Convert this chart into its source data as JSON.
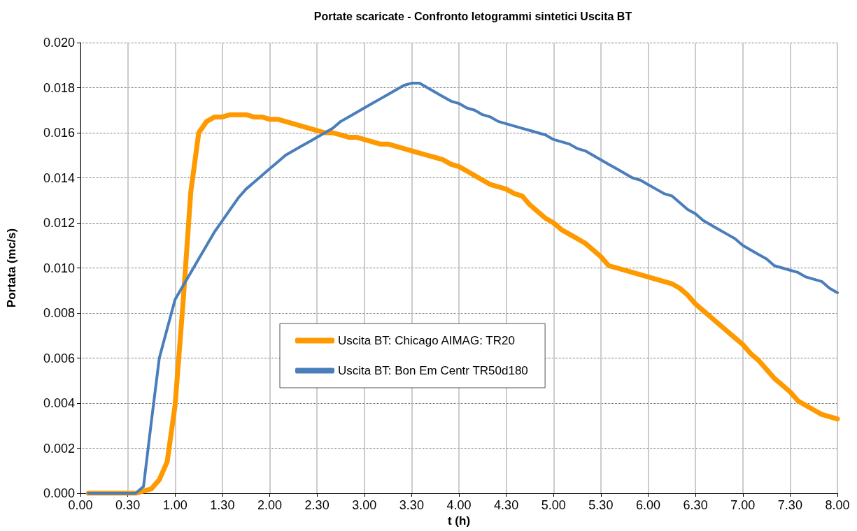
{
  "chart_data": {
    "type": "line",
    "title": "Portate scaricate - Confronto Ietogrammi sintetici Uscita BT",
    "xlabel": "t (h)",
    "ylabel": "Portata (mc/s)",
    "categories": [
      "0.00",
      null,
      null,
      null,
      null,
      null,
      "0.30",
      null,
      null,
      null,
      null,
      null,
      "1.00",
      null,
      null,
      null,
      null,
      null,
      "1.30",
      null,
      null,
      null,
      null,
      null,
      "2.00",
      null,
      null,
      null,
      null,
      null,
      "2.30",
      null,
      null,
      null,
      null,
      null,
      "3.00",
      null,
      null,
      null,
      null,
      null,
      "3.30",
      null,
      null,
      null,
      null,
      null,
      "4.00",
      null,
      null,
      null,
      null,
      null,
      "4.30",
      null,
      null,
      null,
      null,
      null,
      "5.00",
      null,
      null,
      null,
      null,
      null,
      "5.30",
      null,
      null,
      null,
      null,
      null,
      "6.00",
      null,
      null,
      null,
      null,
      null,
      "6.30",
      null,
      null,
      null,
      null,
      null,
      "7.00",
      null,
      null,
      null,
      null,
      null,
      "7.30",
      null,
      null,
      null,
      null,
      null,
      "8.00"
    ],
    "series": [
      {
        "name": "Uscita BT: Chicago AIMAG: TR20",
        "color": "#ff9900",
        "values": [
          null,
          0,
          0,
          0,
          0,
          0,
          0,
          0,
          0.0001,
          0.0002,
          0.0006,
          0.0014,
          0.0039,
          0.0084,
          0.0134,
          0.016,
          0.0165,
          0.0167,
          0.0167,
          0.0168,
          0.0168,
          0.0168,
          0.0167,
          0.0167,
          0.0166,
          0.0166,
          0.0165,
          0.0164,
          0.0163,
          0.0162,
          0.0161,
          0.016,
          0.016,
          0.0159,
          0.0158,
          0.0158,
          0.0157,
          0.0156,
          0.0155,
          0.0155,
          0.0154,
          0.0153,
          0.0152,
          0.0151,
          0.015,
          0.0149,
          0.0148,
          0.0146,
          0.0145,
          0.0143,
          0.0141,
          0.0139,
          0.0137,
          0.0136,
          0.0135,
          0.0133,
          0.0132,
          0.0128,
          0.0125,
          0.0122,
          0.012,
          0.0117,
          0.0115,
          0.0113,
          0.0111,
          0.0108,
          0.0105,
          0.0101,
          0.01,
          0.0099,
          0.0098,
          0.0097,
          0.0096,
          0.0095,
          0.0094,
          0.0093,
          0.0091,
          0.0088,
          0.0084,
          0.0081,
          0.0078,
          0.0075,
          0.0072,
          0.0069,
          0.0066,
          0.0062,
          0.0059,
          0.0055,
          0.0051,
          0.0048,
          0.0045,
          0.0041,
          0.0039,
          0.0037,
          0.0035,
          0.0034,
          0.0033
        ]
      },
      {
        "name": "Uscita BT: Bon Em Centr TR50d180",
        "color": "#4a7ebb",
        "values": [
          null,
          0,
          0,
          0,
          0,
          0,
          0,
          0,
          0.0003,
          0.0032,
          0.006,
          0.0073,
          0.0086,
          0.0092,
          0.0098,
          0.0104,
          0.011,
          0.0116,
          0.0121,
          0.0126,
          0.0131,
          0.0135,
          0.0138,
          0.0141,
          0.0144,
          0.0147,
          0.015,
          0.0152,
          0.0154,
          0.0156,
          0.0158,
          0.016,
          0.0162,
          0.0165,
          0.0167,
          0.0169,
          0.0171,
          0.0173,
          0.0175,
          0.0177,
          0.0179,
          0.0181,
          0.0182,
          0.0182,
          0.018,
          0.0178,
          0.0176,
          0.0174,
          0.0173,
          0.0171,
          0.017,
          0.0168,
          0.0167,
          0.0165,
          0.0164,
          0.0163,
          0.0162,
          0.0161,
          0.016,
          0.0159,
          0.0157,
          0.0156,
          0.0155,
          0.0153,
          0.0152,
          0.015,
          0.0148,
          0.0146,
          0.0144,
          0.0142,
          0.014,
          0.0139,
          0.0137,
          0.0135,
          0.0133,
          0.0132,
          0.0129,
          0.0126,
          0.0124,
          0.0121,
          0.0119,
          0.0117,
          0.0115,
          0.0113,
          0.011,
          0.0108,
          0.0106,
          0.0104,
          0.0101,
          0.01,
          0.0099,
          0.0098,
          0.0096,
          0.0095,
          0.0094,
          0.0091,
          0.0089
        ]
      }
    ],
    "ylim": [
      0,
      0.02
    ],
    "yticks": [
      {
        "value": 0,
        "label": "0.000"
      },
      {
        "value": 0.002,
        "label": "0.002"
      },
      {
        "value": 0.004,
        "label": "0.004"
      },
      {
        "value": 0.006,
        "label": "0.006"
      },
      {
        "value": 0.008,
        "label": "0.008"
      },
      {
        "value": 0.01,
        "label": "0.010"
      },
      {
        "value": 0.012,
        "label": "0.012"
      },
      {
        "value": 0.014,
        "label": "0.014"
      },
      {
        "value": 0.016,
        "label": "0.016"
      },
      {
        "value": 0.018,
        "label": "0.018"
      },
      {
        "value": 0.02,
        "label": "0.020"
      }
    ],
    "grid": true,
    "legend": "center",
    "marker": "none",
    "line_style": "solid"
  }
}
